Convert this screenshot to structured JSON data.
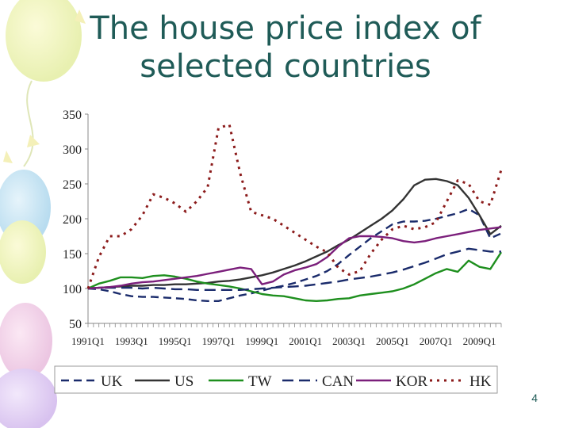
{
  "slide": {
    "title_line1": "The house price index of",
    "title_line2": "selected countries",
    "page_number": "4"
  },
  "chart_data": {
    "type": "line",
    "title": "",
    "xlabel": "",
    "ylabel": "",
    "ylim": [
      50,
      350
    ],
    "yticks": [
      "50",
      "100",
      "150",
      "200",
      "250",
      "300",
      "350"
    ],
    "xtick_labels": [
      "1991Q1",
      "1993Q1",
      "1995Q1",
      "1997Q1",
      "1999Q1",
      "2001Q1",
      "2003Q1",
      "2005Q1",
      "2007Q1",
      "2009Q1"
    ],
    "legend_position": "bottom",
    "x": [
      1991.0,
      1991.5,
      1992.0,
      1992.5,
      1993.0,
      1993.5,
      1994.0,
      1994.5,
      1995.0,
      1995.5,
      1996.0,
      1996.5,
      1997.0,
      1997.5,
      1998.0,
      1998.5,
      1999.0,
      1999.5,
      2000.0,
      2000.5,
      2001.0,
      2001.5,
      2002.0,
      2002.5,
      2003.0,
      2003.5,
      2004.0,
      2004.5,
      2005.0,
      2005.5,
      2006.0,
      2006.5,
      2007.0,
      2007.5,
      2008.0,
      2008.5,
      2009.0,
      2009.5,
      2010.0
    ],
    "series": [
      {
        "name": "UK",
        "color": "#1a2b6b",
        "dash": "10,6",
        "values": [
          100,
          99,
          96,
          92,
          89,
          88,
          88,
          87,
          86,
          85,
          83,
          82,
          82,
          86,
          90,
          93,
          97,
          101,
          104,
          108,
          113,
          118,
          125,
          135,
          148,
          160,
          172,
          182,
          192,
          196,
          196,
          197,
          200,
          204,
          208,
          214,
          205,
          172,
          179
        ]
      },
      {
        "name": "US",
        "color": "#333333",
        "dash": "",
        "values": [
          100,
          101,
          102,
          103,
          104,
          104,
          105,
          105,
          106,
          106,
          107,
          108,
          110,
          111,
          113,
          116,
          119,
          123,
          128,
          133,
          139,
          146,
          153,
          162,
          170,
          180,
          190,
          200,
          212,
          228,
          248,
          256,
          257,
          254,
          248,
          230,
          205,
          178,
          190
        ]
      },
      {
        "name": "TW",
        "color": "#1e8f1e",
        "dash": "",
        "values": [
          100,
          107,
          111,
          116,
          116,
          115,
          118,
          119,
          117,
          114,
          110,
          107,
          105,
          103,
          100,
          96,
          92,
          90,
          89,
          86,
          83,
          82,
          83,
          85,
          86,
          90,
          92,
          94,
          96,
          100,
          106,
          114,
          122,
          128,
          124,
          140,
          131,
          128,
          152
        ]
      },
      {
        "name": "CAN",
        "color": "#1a2b6b",
        "dash": "14,7",
        "values": [
          100,
          101,
          101,
          101,
          101,
          100,
          101,
          100,
          99,
          99,
          98,
          98,
          98,
          98,
          98,
          99,
          100,
          101,
          102,
          103,
          104,
          106,
          108,
          110,
          113,
          115,
          117,
          120,
          123,
          127,
          132,
          137,
          143,
          149,
          153,
          157,
          155,
          153,
          153
        ]
      },
      {
        "name": "KOR",
        "color": "#7b1f7b",
        "dash": "",
        "values": [
          100,
          101,
          102,
          104,
          107,
          109,
          110,
          112,
          114,
          116,
          118,
          121,
          124,
          127,
          130,
          128,
          106,
          110,
          120,
          126,
          130,
          135,
          145,
          160,
          172,
          175,
          175,
          174,
          172,
          168,
          166,
          168,
          172,
          175,
          178,
          181,
          184,
          186,
          188
        ]
      },
      {
        "name": "HK",
        "color": "#8b1a1a",
        "dash": "3,6",
        "values": [
          100,
          145,
          175,
          175,
          185,
          205,
          235,
          230,
          222,
          210,
          225,
          245,
          330,
          335,
          265,
          210,
          205,
          200,
          190,
          180,
          170,
          160,
          152,
          130,
          120,
          125,
          150,
          170,
          185,
          190,
          185,
          188,
          195,
          225,
          255,
          250,
          225,
          220,
          270
        ]
      }
    ]
  }
}
